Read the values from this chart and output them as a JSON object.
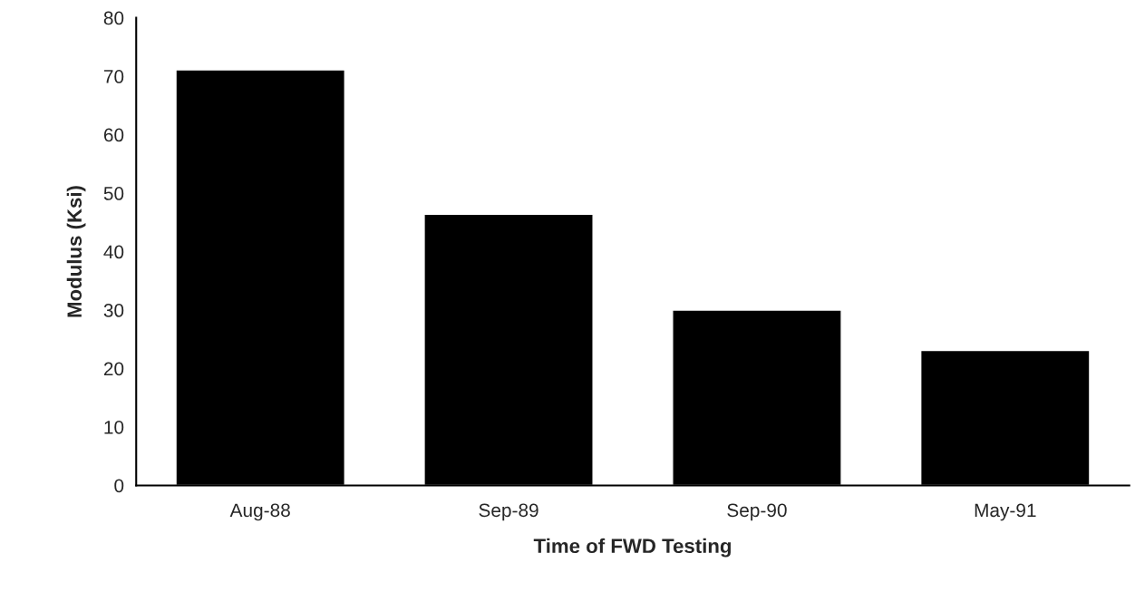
{
  "chart_data": {
    "type": "bar",
    "categories": [
      "Aug-88",
      "Sep-89",
      "Sep-90",
      "May-91"
    ],
    "values": [
      71.1,
      46.4,
      30.0,
      23.1
    ],
    "color": "#000000",
    "xlabel": "Time of FWD Testing",
    "ylabel": "Modulus (Ksi)",
    "ylim": [
      0,
      80
    ],
    "yticks": [
      0,
      10,
      20,
      30,
      40,
      50,
      60,
      70,
      80
    ],
    "grid": false,
    "legend": false
  }
}
